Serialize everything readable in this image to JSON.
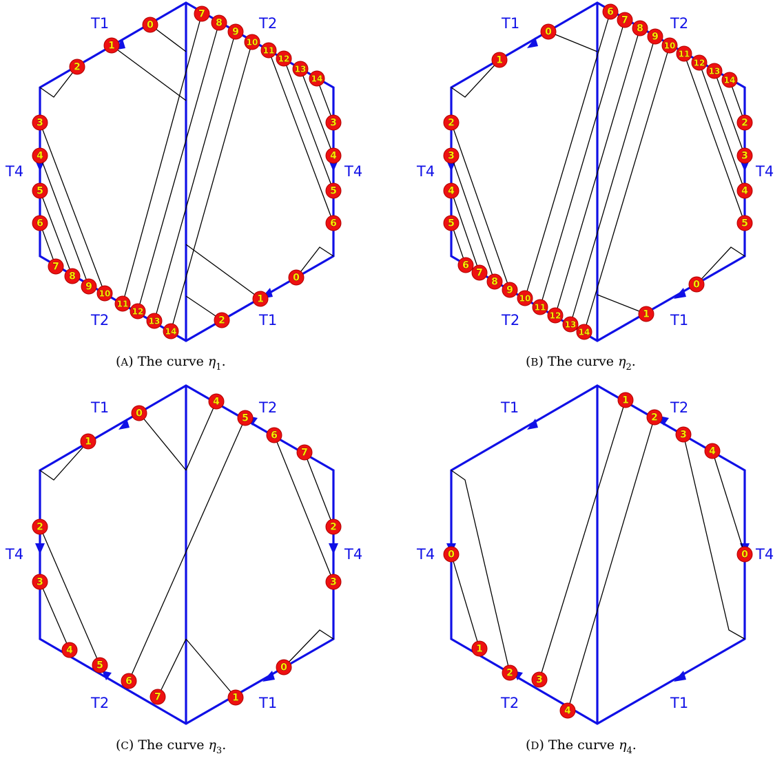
{
  "colors": {
    "edge": "#1010e6",
    "point": "#ee1111",
    "point_text": "#ffe600",
    "arc": "#000000"
  },
  "panels": [
    {
      "caption_prefix": "(",
      "caption_letter": "A",
      "caption_text": ") The curve ",
      "caption_sub": "1",
      "labels": {
        "t1a": "T1",
        "t2a": "T2",
        "t4l": "T4",
        "t4r": "T4",
        "t2b": "T2",
        "t1b": "T1"
      },
      "point_labels": [
        "0",
        "1",
        "2",
        "7",
        "8",
        "9",
        "10",
        "11",
        "12",
        "13",
        "14",
        "3",
        "4",
        "5",
        "6",
        "3",
        "4",
        "5",
        "6",
        "7",
        "8",
        "9",
        "10",
        "11",
        "12",
        "13",
        "14",
        "0",
        "1",
        "2"
      ]
    },
    {
      "caption_prefix": "(",
      "caption_letter": "B",
      "caption_text": ") The curve ",
      "caption_sub": "2",
      "labels": {
        "t1a": "T1",
        "t2a": "T2",
        "t4l": "T4",
        "t4r": "T4",
        "t2b": "T2",
        "t1b": "T1"
      },
      "point_labels": [
        "0",
        "1",
        "6",
        "7",
        "8",
        "9",
        "10",
        "11",
        "12",
        "13",
        "14",
        "2",
        "3",
        "4",
        "5",
        "2",
        "3",
        "4",
        "5",
        "6",
        "7",
        "8",
        "9",
        "10",
        "11",
        "12",
        "13",
        "14",
        "0",
        "1"
      ]
    },
    {
      "caption_prefix": "(",
      "caption_letter": "C",
      "caption_text": ") The curve ",
      "caption_sub": "3",
      "labels": {
        "t1a": "T1",
        "t2a": "T2",
        "t4l": "T4",
        "t4r": "T4",
        "t2b": "T2",
        "t1b": "T1"
      },
      "point_labels": [
        "0",
        "1",
        "4",
        "5",
        "6",
        "7",
        "2",
        "3",
        "2",
        "3",
        "4",
        "5",
        "6",
        "7",
        "0",
        "1"
      ]
    },
    {
      "caption_prefix": "(",
      "caption_letter": "D",
      "caption_text": ") The curve ",
      "caption_sub": "4",
      "labels": {
        "t1a": "T1",
        "t2a": "T2",
        "t4l": "T4",
        "t4r": "T4",
        "t2b": "T2",
        "t1b": "T1"
      },
      "point_labels": [
        "1",
        "2",
        "3",
        "4",
        "0",
        "0",
        "1",
        "2",
        "3",
        "4"
      ]
    }
  ]
}
